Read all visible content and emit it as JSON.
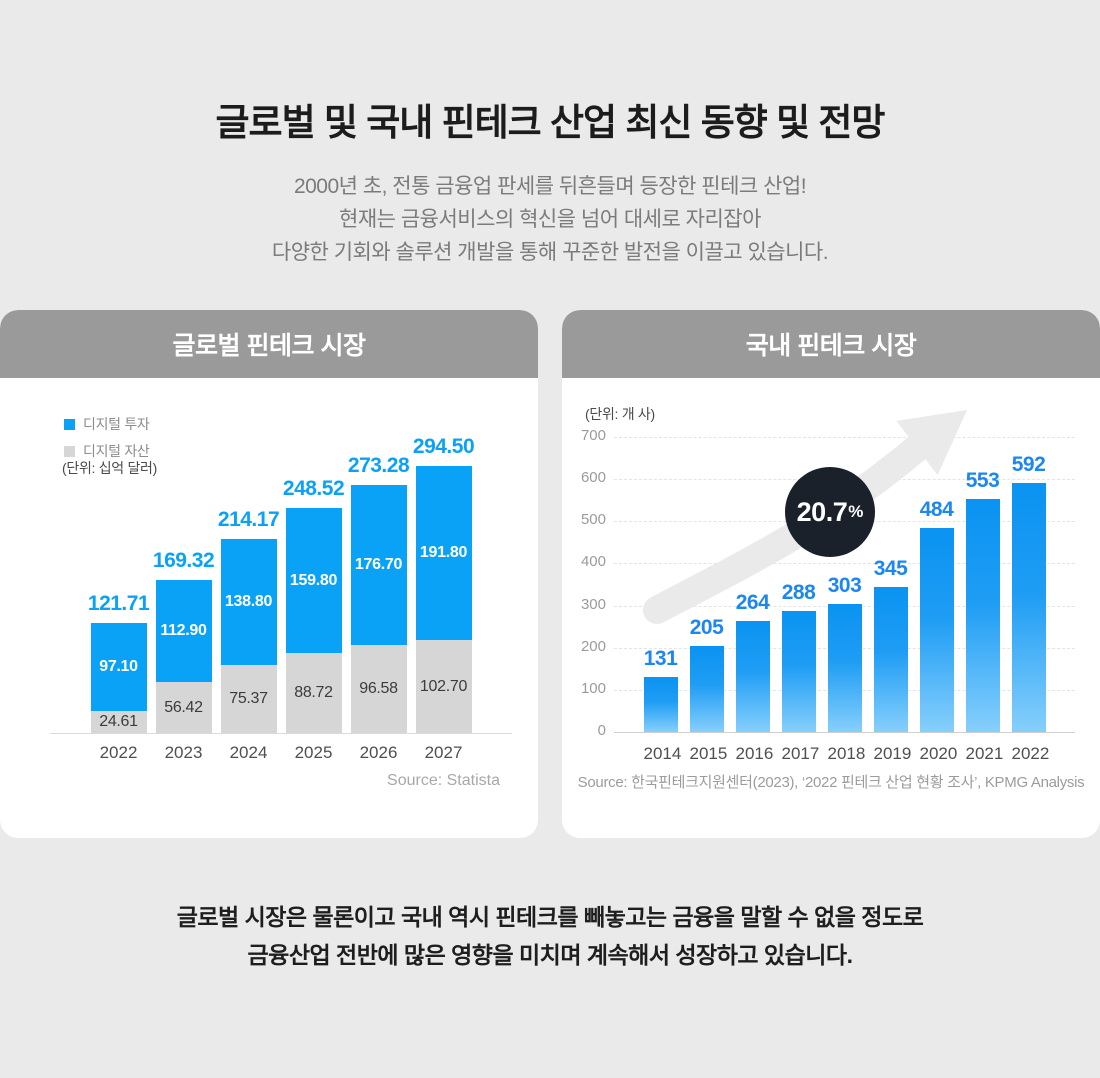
{
  "page": {
    "title": "글로벌 및 국내 핀테크 산업 최신 동향 및 전망",
    "subtitle_lines": [
      "2000년 초, 전통 금융업 판세를 뒤흔들며 등장한 핀테크 산업!",
      "현재는 금융서비스의 혁신을 넘어 대세로 자리잡아",
      "다양한 기회와 솔루션 개발을 통해 꾸준한 발전을 이끌고 있습니다."
    ],
    "footer_lines": [
      "글로벌 시장은 물론이고 국내 역시 핀테크를 빼놓고는 금융을 말할 수 없을 정도로",
      "금융산업 전반에 많은 영향을 미치며 계속해서 성장하고 있습니다."
    ]
  },
  "chart_data": [
    {
      "id": "global-fintech-market",
      "type": "bar",
      "stacked": true,
      "title": "글로벌 핀테크 시장",
      "unit": "(단위: 십억 달러)",
      "categories": [
        "2022",
        "2023",
        "2024",
        "2025",
        "2026",
        "2027"
      ],
      "series": [
        {
          "name": "디지털 투자",
          "color": "#0AA2F6",
          "values": [
            97.1,
            112.9,
            138.8,
            159.8,
            176.7,
            191.8
          ],
          "labels": [
            "97.10",
            "112.90",
            "138.80",
            "159.80",
            "176.70",
            "191.80"
          ]
        },
        {
          "name": "디지털 자산",
          "color": "#D6D6D6",
          "values": [
            24.61,
            56.42,
            75.37,
            88.72,
            96.58,
            102.7
          ],
          "labels": [
            "24.61",
            "56.42",
            "75.37",
            "88.72",
            "96.58",
            "102.70"
          ]
        }
      ],
      "totals": [
        "121.71",
        "169.32",
        "214.17",
        "248.52",
        "273.28",
        "294.50"
      ],
      "ylim": [
        0,
        300
      ],
      "grid": false,
      "legend_position": "top-left",
      "source": "Source: Statista"
    },
    {
      "id": "domestic-fintech-market",
      "type": "bar",
      "title": "국내 핀테크 시장",
      "unit": "(단위: 개 사)",
      "categories": [
        "2014",
        "2015",
        "2016",
        "2017",
        "2018",
        "2019",
        "2020",
        "2021",
        "2022"
      ],
      "values": [
        131,
        205,
        264,
        288,
        303,
        345,
        484,
        553,
        592
      ],
      "yticks": [
        0,
        100,
        200,
        300,
        400,
        500,
        600,
        700
      ],
      "ylim": [
        0,
        700
      ],
      "grid": true,
      "bar_gradient": [
        "#0A93F2",
        "#1F9DF4",
        "#86CFFC"
      ],
      "value_label_color": "#1C87F0",
      "annotation": {
        "value": "20.7",
        "suffix": "%",
        "color": "#1B212B"
      },
      "source": "Source: 한국핀테크지원센터(2023), ‘2022 핀테크 산업 현황 조사’, KPMG Analysis"
    }
  ]
}
